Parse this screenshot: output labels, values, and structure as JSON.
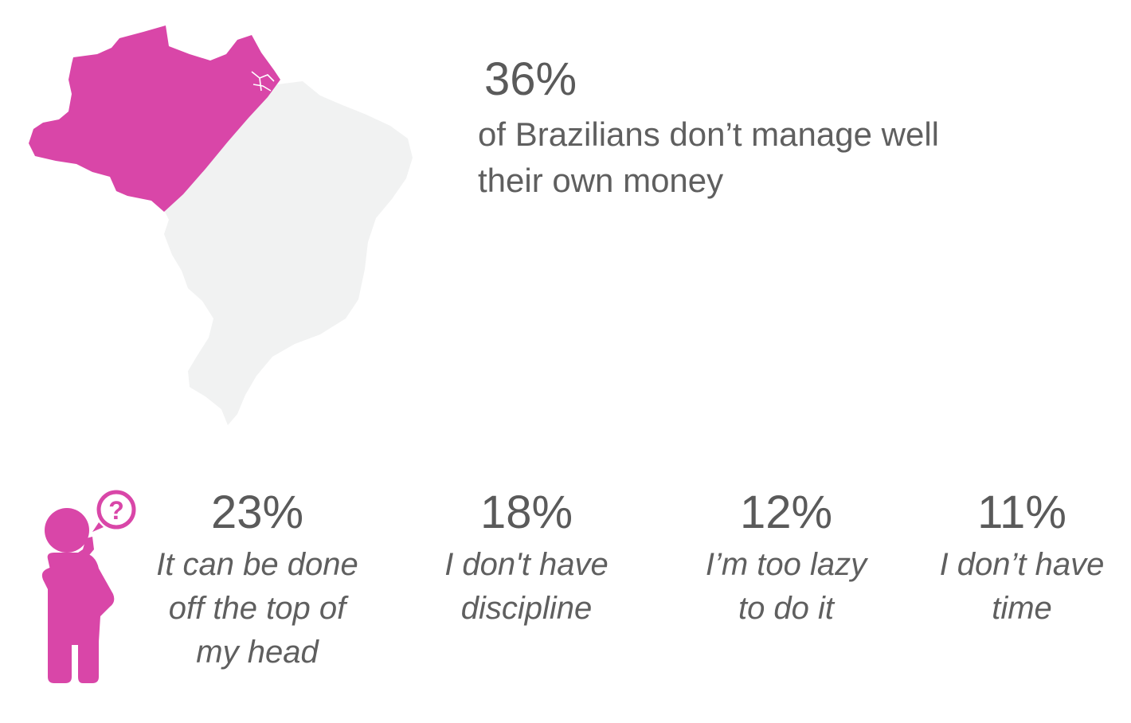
{
  "colors": {
    "accent": "#d946a8",
    "map_gray": "#f1f2f2",
    "text": "#5f5f5f"
  },
  "map": {
    "icon": "brazil-map-icon",
    "highlight_share": "36%"
  },
  "headline": {
    "value": "36%",
    "description": "of Brazilians don’t manage well\ntheir own money"
  },
  "figure": {
    "icon": "thinking-person-question-icon"
  },
  "stats": [
    {
      "value": "23%",
      "label": "It can be done\noff the top of\nmy head"
    },
    {
      "value": "18%",
      "label": "I don't have\ndiscipline"
    },
    {
      "value": "12%",
      "label": "I’m too lazy\nto do it"
    },
    {
      "value": "11%",
      "label": "I don’t have\ntime"
    }
  ]
}
